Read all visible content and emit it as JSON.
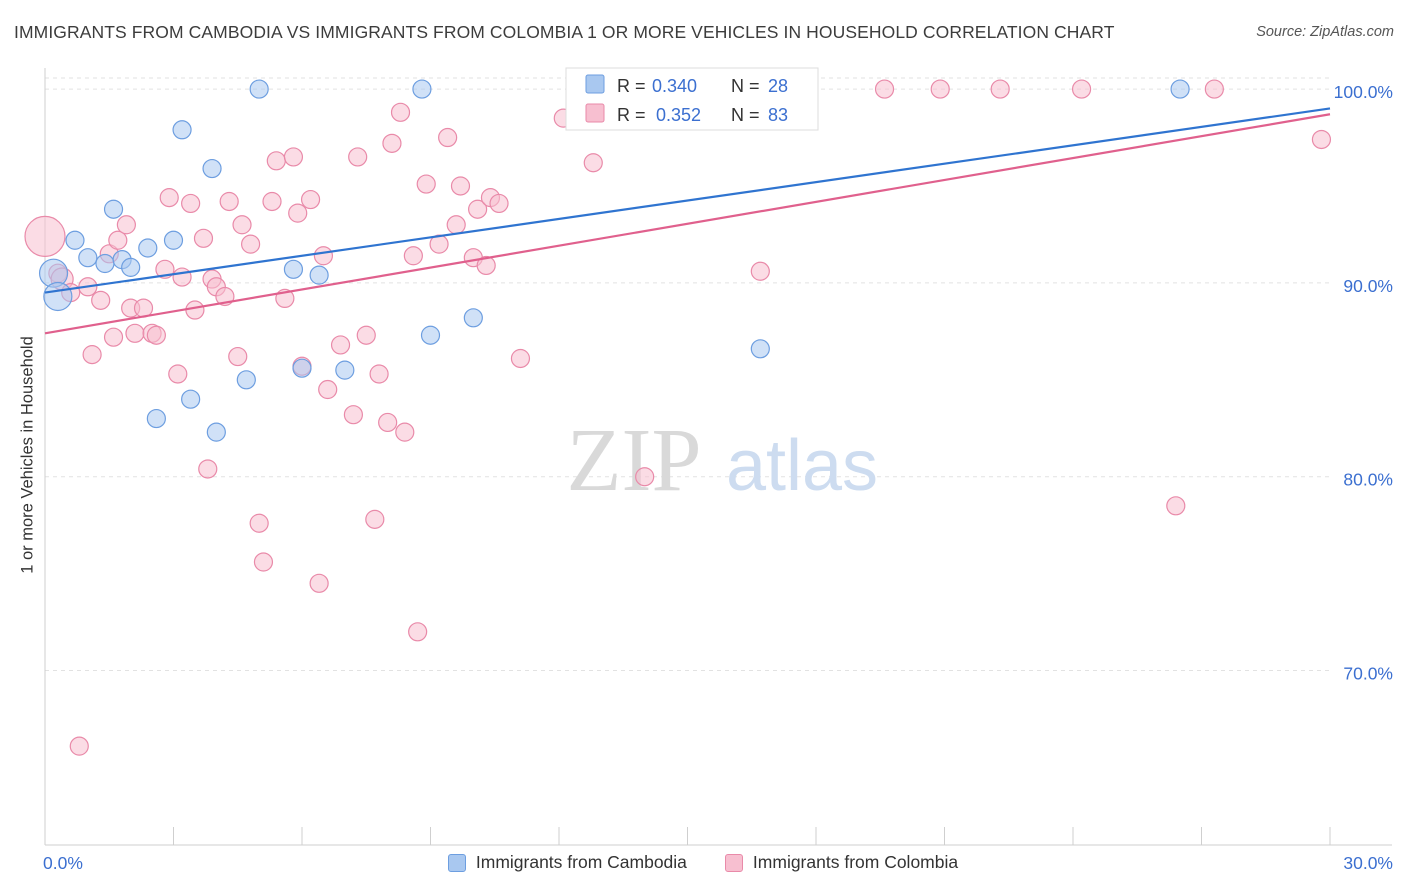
{
  "title": "IMMIGRANTS FROM CAMBODIA VS IMMIGRANTS FROM COLOMBIA 1 OR MORE VEHICLES IN HOUSEHOLD CORRELATION CHART",
  "source": "Source: ZipAtlas.com",
  "watermark": {
    "zip": "ZIP",
    "atlas": "atlas"
  },
  "colors": {
    "cambodia_fill": "#a9c8f0",
    "cambodia_stroke": "#6d9ee0",
    "cambodia_line": "#2f74d0",
    "colombia_fill": "#f7bfd0",
    "colombia_stroke": "#e98aa9",
    "colombia_line": "#e0608d",
    "stat_text": "#3b6fd0",
    "grid": "#e2e2e2"
  },
  "stats_box": {
    "rows": [
      {
        "r_label": "R =",
        "r_value": "0.340",
        "n_label": "N =",
        "n_value": "28"
      },
      {
        "r_label": "R =",
        "r_value": "0.352",
        "n_label": "N =",
        "n_value": "83"
      }
    ]
  },
  "chart_data": {
    "type": "scatter",
    "title": "IMMIGRANTS FROM CAMBODIA VS IMMIGRANTS FROM COLOMBIA 1 OR MORE VEHICLES IN HOUSEHOLD CORRELATION CHART",
    "xlabel": "",
    "ylabel": "1 or more Vehicles in Household",
    "xlim": [
      0,
      30
    ],
    "ylim": [
      61,
      101.5
    ],
    "x_tick_labels": [
      "0.0%",
      "30.0%"
    ],
    "y_tick_labels": [
      "100.0%",
      "90.0%",
      "80.0%",
      "70.0%"
    ],
    "y_ticks": [
      100,
      90,
      80,
      70
    ],
    "grid": true,
    "legend_position": "bottom",
    "series": [
      {
        "name": "Immigrants from Cambodia",
        "trend": [
          [
            0,
            89.5
          ],
          [
            30,
            99.0
          ]
        ],
        "points": [
          [
            0.2,
            90.5,
            14
          ],
          [
            0.3,
            89.3,
            14
          ],
          [
            0.7,
            92.2,
            9
          ],
          [
            1.0,
            91.3,
            9
          ],
          [
            1.4,
            91.0,
            9
          ],
          [
            1.6,
            93.8,
            9
          ],
          [
            1.8,
            91.2,
            9
          ],
          [
            2.0,
            90.8,
            9
          ],
          [
            2.4,
            91.8,
            9
          ],
          [
            2.6,
            83.0,
            9
          ],
          [
            3.0,
            92.2,
            9
          ],
          [
            3.2,
            97.9,
            9
          ],
          [
            3.4,
            84.0,
            9
          ],
          [
            3.9,
            95.9,
            9
          ],
          [
            4.0,
            82.3,
            9
          ],
          [
            4.7,
            85.0,
            9
          ],
          [
            5.0,
            100.0,
            9
          ],
          [
            5.8,
            90.7,
            9
          ],
          [
            6.0,
            85.6,
            9
          ],
          [
            6.4,
            90.4,
            9
          ],
          [
            7.0,
            85.5,
            9
          ],
          [
            8.8,
            100.0,
            9
          ],
          [
            9.0,
            87.3,
            9
          ],
          [
            10.0,
            88.2,
            9
          ],
          [
            12.9,
            100.0,
            9
          ],
          [
            13.2,
            100.0,
            9
          ],
          [
            16.7,
            86.6,
            9
          ],
          [
            26.5,
            100.0,
            9
          ]
        ]
      },
      {
        "name": "Immigrants from Colombia",
        "trend": [
          [
            0,
            87.4
          ],
          [
            30,
            98.7
          ]
        ],
        "points": [
          [
            0.0,
            92.4,
            20
          ],
          [
            0.3,
            90.5,
            9
          ],
          [
            0.4,
            90.2,
            11
          ],
          [
            0.6,
            89.5,
            9
          ],
          [
            0.8,
            66.1,
            9
          ],
          [
            1.0,
            89.8,
            9
          ],
          [
            1.1,
            86.3,
            9
          ],
          [
            1.3,
            89.1,
            9
          ],
          [
            1.5,
            91.5,
            9
          ],
          [
            1.6,
            87.2,
            9
          ],
          [
            1.7,
            92.2,
            9
          ],
          [
            1.9,
            93.0,
            9
          ],
          [
            2.0,
            88.7,
            9
          ],
          [
            2.1,
            87.4,
            9
          ],
          [
            2.3,
            88.7,
            9
          ],
          [
            2.5,
            87.4,
            9
          ],
          [
            2.6,
            87.3,
            9
          ],
          [
            2.8,
            90.7,
            9
          ],
          [
            2.9,
            94.4,
            9
          ],
          [
            3.1,
            85.3,
            9
          ],
          [
            3.2,
            90.3,
            9
          ],
          [
            3.4,
            94.1,
            9
          ],
          [
            3.5,
            88.6,
            9
          ],
          [
            3.7,
            92.3,
            9
          ],
          [
            3.8,
            80.4,
            9
          ],
          [
            3.9,
            90.2,
            9
          ],
          [
            4.0,
            89.8,
            9
          ],
          [
            4.2,
            89.3,
            9
          ],
          [
            4.3,
            94.2,
            9
          ],
          [
            4.5,
            86.2,
            9
          ],
          [
            4.6,
            93.0,
            9
          ],
          [
            4.8,
            92.0,
            9
          ],
          [
            5.0,
            77.6,
            9
          ],
          [
            5.1,
            75.6,
            9
          ],
          [
            5.3,
            94.2,
            9
          ],
          [
            5.4,
            96.3,
            9
          ],
          [
            5.6,
            89.2,
            9
          ],
          [
            5.8,
            96.5,
            9
          ],
          [
            5.9,
            93.6,
            9
          ],
          [
            6.0,
            85.7,
            9
          ],
          [
            6.2,
            94.3,
            9
          ],
          [
            6.4,
            74.5,
            9
          ],
          [
            6.5,
            91.4,
            9
          ],
          [
            6.6,
            84.5,
            9
          ],
          [
            6.9,
            86.8,
            9
          ],
          [
            7.2,
            83.2,
            9
          ],
          [
            7.3,
            96.5,
            9
          ],
          [
            7.5,
            87.3,
            9
          ],
          [
            7.7,
            77.8,
            9
          ],
          [
            7.8,
            85.3,
            9
          ],
          [
            8.0,
            82.8,
            9
          ],
          [
            8.1,
            97.2,
            9
          ],
          [
            8.3,
            98.8,
            9
          ],
          [
            8.4,
            82.3,
            9
          ],
          [
            8.6,
            91.4,
            9
          ],
          [
            8.7,
            72.0,
            9
          ],
          [
            8.9,
            95.1,
            9
          ],
          [
            9.2,
            92.0,
            9
          ],
          [
            9.4,
            97.5,
            9
          ],
          [
            9.6,
            93.0,
            9
          ],
          [
            9.7,
            95.0,
            9
          ],
          [
            10.0,
            91.3,
            9
          ],
          [
            10.1,
            93.8,
            9
          ],
          [
            10.3,
            90.9,
            9
          ],
          [
            10.4,
            94.4,
            9
          ],
          [
            10.6,
            94.1,
            9
          ],
          [
            11.1,
            86.1,
            9
          ],
          [
            12.1,
            98.5,
            9
          ],
          [
            12.8,
            96.2,
            9
          ],
          [
            13.4,
            100.0,
            9
          ],
          [
            14.0,
            80.0,
            9
          ],
          [
            15.0,
            100.0,
            9
          ],
          [
            15.7,
            100.0,
            9
          ],
          [
            16.5,
            100.0,
            9
          ],
          [
            16.7,
            90.6,
            9
          ],
          [
            17.7,
            98.7,
            9
          ],
          [
            19.6,
            100.0,
            9
          ],
          [
            20.9,
            100.0,
            9
          ],
          [
            22.3,
            100.0,
            9
          ],
          [
            24.2,
            100.0,
            9
          ],
          [
            26.4,
            78.5,
            9
          ],
          [
            27.3,
            100.0,
            9
          ],
          [
            29.8,
            97.4,
            9
          ]
        ]
      }
    ]
  }
}
